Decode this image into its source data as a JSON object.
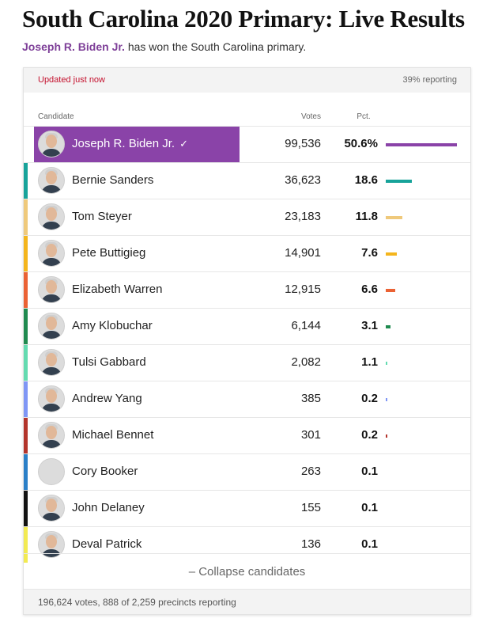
{
  "header": {
    "title": "South Carolina 2020 Primary: Live Results",
    "winner_name": "Joseph R. Biden Jr.",
    "winner_text": " has won the South Carolina primary."
  },
  "status": {
    "updated": "Updated just now",
    "reporting": "39% reporting"
  },
  "table": {
    "headers": {
      "candidate": "Candidate",
      "votes": "Votes",
      "pct": "Pct."
    },
    "rows": [
      {
        "name": "Joseph R. Biden Jr.",
        "votes": "99,536",
        "pct": "50.6%",
        "pct_value": 50.6,
        "color": "#8a43a8",
        "winner": true,
        "check": "✓"
      },
      {
        "name": "Bernie Sanders",
        "votes": "36,623",
        "pct": "18.6",
        "pct_value": 18.6,
        "color": "#17a39a"
      },
      {
        "name": "Tom Steyer",
        "votes": "23,183",
        "pct": "11.8",
        "pct_value": 11.8,
        "color": "#efc97b"
      },
      {
        "name": "Pete Buttigieg",
        "votes": "14,901",
        "pct": "7.6",
        "pct_value": 7.6,
        "color": "#f4b51c"
      },
      {
        "name": "Elizabeth Warren",
        "votes": "12,915",
        "pct": "6.6",
        "pct_value": 6.6,
        "color": "#eb6234"
      },
      {
        "name": "Amy Klobuchar",
        "votes": "6,144",
        "pct": "3.1",
        "pct_value": 3.1,
        "color": "#1f8a4f"
      },
      {
        "name": "Tulsi Gabbard",
        "votes": "2,082",
        "pct": "1.1",
        "pct_value": 1.1,
        "color": "#63dbb0"
      },
      {
        "name": "Andrew Yang",
        "votes": "385",
        "pct": "0.2",
        "pct_value": 0.2,
        "color": "#7f96f5"
      },
      {
        "name": "Michael Bennet",
        "votes": "301",
        "pct": "0.2",
        "pct_value": 0.2,
        "color": "#b3342b"
      },
      {
        "name": "Cory Booker",
        "votes": "263",
        "pct": "0.1",
        "pct_value": 0.1,
        "color": "#2a7fc7",
        "no_photo": true
      },
      {
        "name": "John Delaney",
        "votes": "155",
        "pct": "0.1",
        "pct_value": 0.1,
        "color": "#111111"
      },
      {
        "name": "Deval Patrick",
        "votes": "136",
        "pct": "0.1",
        "pct_value": 0.1,
        "color": "#f2ea52"
      }
    ]
  },
  "collapse_label": "– Collapse candidates",
  "footer_text": "196,624 votes, 888 of 2,259 precincts reporting"
}
